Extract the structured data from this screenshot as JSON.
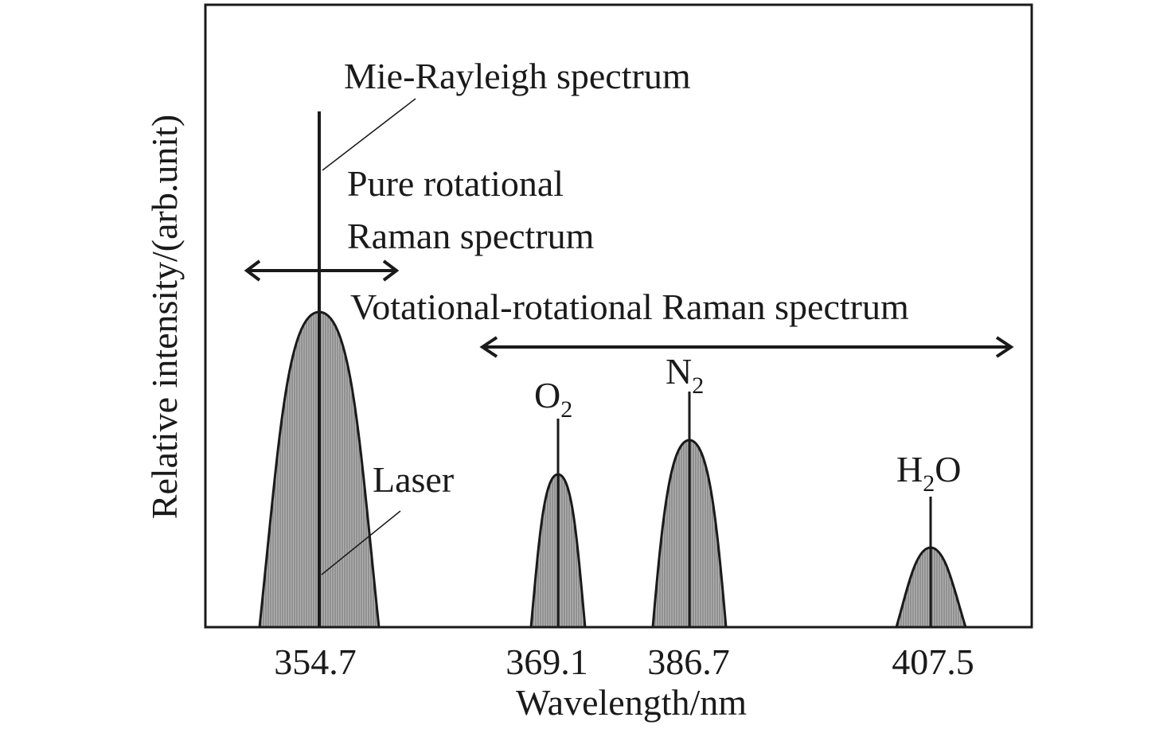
{
  "axes": {
    "xlabel": "Wavelength/nm",
    "ylabel": "Relative intensity/(arb.unit)"
  },
  "annotations": {
    "mie_rayleigh": "Mie-Rayleigh spectrum",
    "pure_rotational_line1": "Pure rotational",
    "pure_rotational_line2": "Raman spectrum",
    "vibrational_rotational": "Votational-rotational Raman spectrum",
    "laser": "Laser"
  },
  "peaks": [
    {
      "tick": "354.7",
      "species": "",
      "sub": "",
      "tail": "",
      "relative_height": 0.5
    },
    {
      "tick": "369.1",
      "species": "O",
      "sub": "2",
      "tail": "",
      "relative_height": 0.25
    },
    {
      "tick": "386.7",
      "species": "N",
      "sub": "2",
      "tail": "",
      "relative_height": 0.3
    },
    {
      "tick": "407.5",
      "species": "H",
      "sub": "2",
      "tail": "O",
      "relative_height": 0.13
    }
  ],
  "colors": {
    "peak_fill": "#9a9a9a",
    "line": "#1a1a1a"
  }
}
